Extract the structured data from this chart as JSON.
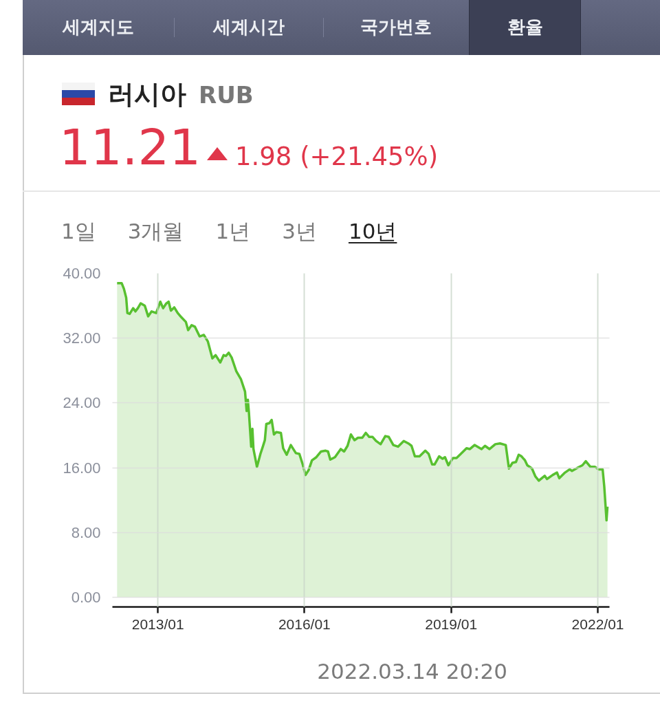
{
  "chart_data": {
    "type": "area",
    "title": "러시아",
    "subtitle": "RUB",
    "annotations": [
      "세계지도",
      "세계시간",
      "국가번호",
      "환율",
      "11.21",
      "1.98 (+21.45%)",
      "1일",
      "3개월",
      "1년",
      "3년",
      "10년",
      "2022.03.14 20:20"
    ],
    "color": "#58c030",
    "x": [
      "2012-03-02",
      "2012-04-05",
      "2012-04-22",
      "2012-05-09",
      "2012-05-18",
      "2012-06-04",
      "2012-06-30",
      "2012-07-17",
      "2012-08-04",
      "2012-08-25",
      "2012-09-25",
      "2012-10-20",
      "2012-11-15",
      "2012-12-19",
      "2013-01-19",
      "2013-02-09",
      "2013-03-05",
      "2013-03-22",
      "2013-04-08",
      "2013-05-03",
      "2013-05-29",
      "2013-06-24",
      "2013-07-29",
      "2013-08-15",
      "2013-09-10",
      "2013-10-05",
      "2013-11-09",
      "2013-12-10",
      "2014-01-09",
      "2014-02-12",
      "2014-03-08",
      "2014-04-12",
      "2014-05-07",
      "2014-05-24",
      "2014-06-14",
      "2014-07-06",
      "2014-08-10",
      "2014-09-14",
      "2014-10-14",
      "2014-10-26",
      "2014-11-04",
      "2014-11-12",
      "2014-11-29",
      "2014-12-08",
      "2014-12-16",
      "2015-01-11",
      "2015-02-06",
      "2015-02-24",
      "2015-03-11",
      "2015-03-22",
      "2015-04-14",
      "2015-05-01",
      "2015-05-18",
      "2015-06-05",
      "2015-07-09",
      "2015-07-26",
      "2015-08-21",
      "2015-09-21",
      "2015-10-29",
      "2015-11-24",
      "2015-12-19",
      "2016-01-09",
      "2016-02-01",
      "2016-02-26",
      "2016-03-30",
      "2016-05-04",
      "2016-06-07",
      "2016-06-25",
      "2016-07-12",
      "2016-08-16",
      "2016-09-28",
      "2016-10-23",
      "2016-11-18",
      "2016-12-13",
      "2017-01-09",
      "2017-02-04",
      "2017-03-08",
      "2017-04-03",
      "2017-04-29",
      "2017-05-24",
      "2017-06-19",
      "2017-07-23",
      "2017-08-27",
      "2017-09-22",
      "2017-10-26",
      "2017-11-30",
      "2018-01-12",
      "2018-02-15",
      "2018-03-11",
      "2018-04-05",
      "2018-05-10",
      "2018-06-22",
      "2018-07-17",
      "2018-08-12",
      "2018-08-30",
      "2018-10-03",
      "2018-10-29",
      "2018-11-16",
      "2018-12-11",
      "2019-01-15",
      "2019-02-10",
      "2019-03-14",
      "2019-04-26",
      "2019-05-21",
      "2019-06-25",
      "2019-08-16",
      "2019-09-11",
      "2019-10-15",
      "2019-11-27",
      "2020-01-01",
      "2020-02-13",
      "2020-03-08",
      "2020-04-03",
      "2020-04-29",
      "2020-05-20",
      "2020-06-10",
      "2020-07-06",
      "2020-07-23",
      "2020-08-27",
      "2020-09-22",
      "2020-10-17",
      "2020-11-30",
      "2020-12-17",
      "2021-01-29",
      "2021-03-02",
      "2021-03-19",
      "2021-05-01",
      "2021-06-05",
      "2021-06-22",
      "2021-08-04",
      "2021-09-08",
      "2021-10-03",
      "2021-11-07",
      "2021-12-11",
      "2022-01-06",
      "2022-02-06",
      "2022-02-18",
      "2022-03-07",
      "2022-03-14"
    ],
    "values": [
      38.8,
      38.8,
      38.1,
      37.0,
      35.1,
      35.0,
      35.7,
      35.3,
      35.7,
      36.3,
      36.0,
      34.7,
      35.3,
      35.1,
      36.5,
      35.7,
      36.3,
      36.5,
      35.4,
      35.8,
      35.1,
      34.6,
      34.0,
      33.0,
      33.6,
      33.4,
      32.2,
      32.4,
      31.6,
      29.5,
      29.9,
      29.0,
      29.9,
      29.8,
      30.2,
      29.6,
      27.9,
      26.9,
      25.4,
      23.0,
      24.4,
      22.8,
      18.6,
      20.8,
      18.3,
      16.1,
      17.7,
      18.6,
      19.4,
      21.4,
      21.5,
      21.9,
      20.1,
      20.4,
      20.3,
      18.4,
      17.6,
      18.8,
      17.8,
      17.7,
      16.4,
      15.1,
      15.7,
      16.9,
      17.3,
      18.0,
      18.1,
      18.0,
      17.0,
      17.3,
      18.3,
      18.0,
      18.7,
      20.1,
      19.4,
      19.7,
      19.7,
      20.3,
      19.8,
      19.8,
      19.3,
      18.9,
      19.9,
      19.8,
      18.8,
      18.6,
      19.3,
      19.0,
      18.7,
      17.4,
      17.4,
      18.1,
      17.7,
      16.4,
      16.4,
      17.4,
      17.1,
      17.3,
      16.3,
      17.2,
      17.2,
      17.7,
      18.4,
      18.3,
      18.8,
      18.3,
      18.7,
      18.3,
      18.9,
      19.0,
      18.8,
      15.9,
      16.6,
      16.7,
      17.6,
      17.4,
      16.9,
      16.3,
      15.9,
      14.9,
      14.4,
      15.0,
      14.6,
      15.1,
      15.4,
      14.7,
      15.4,
      15.8,
      15.6,
      16.0,
      16.3,
      16.8,
      16.1,
      16.1,
      15.8,
      15.8,
      13.7,
      9.5,
      11.2
    ],
    "xlim": [
      "2012-01-27",
      "2022-03-29"
    ],
    "ylim": [
      -1.2,
      40
    ],
    "xticks": [
      {
        "value": "2013-01-01",
        "label": "2013/01"
      },
      {
        "value": "2016-01-01",
        "label": "2016/01"
      },
      {
        "value": "2019-01-01",
        "label": "2019/01"
      },
      {
        "value": "2022-01-01",
        "label": "2022/01"
      }
    ],
    "yticks": [
      {
        "value": 0,
        "label": "0.00"
      },
      {
        "value": 8,
        "label": "8.00"
      },
      {
        "value": 16,
        "label": "16.00"
      },
      {
        "value": 24,
        "label": "24.00"
      },
      {
        "value": 32,
        "label": "32.00"
      },
      {
        "value": 40,
        "label": "40.00"
      }
    ],
    "grid": true
  }
}
